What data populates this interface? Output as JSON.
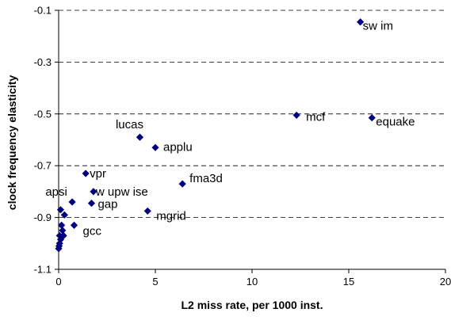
{
  "chart_data": {
    "type": "scatter",
    "title": "",
    "xlabel": "L2 miss rate, per 1000 inst.",
    "ylabel": "clock frequency elasticity",
    "xlim": [
      0,
      20
    ],
    "ylim": [
      -1.1,
      -0.1
    ],
    "xticks": [
      0,
      5,
      10,
      15,
      20
    ],
    "yticks": [
      -1.1,
      -0.9,
      -0.7,
      -0.5,
      -0.3,
      -0.1
    ],
    "xtick_labels": [
      "0",
      "5",
      "10",
      "15",
      "20"
    ],
    "ytick_labels": [
      "-1.1",
      "-0.9",
      "-0.7",
      "-0.5",
      "-0.3",
      "-0.1"
    ],
    "grid": "horizontal dashed",
    "legend": "none",
    "marker": "diamond",
    "marker_color": "#00007f",
    "points": [
      {
        "x": 15.6,
        "y": -0.145,
        "label": "sw im"
      },
      {
        "x": 12.3,
        "y": -0.505,
        "label": "mcf"
      },
      {
        "x": 16.2,
        "y": -0.515,
        "label": "equake"
      },
      {
        "x": 4.2,
        "y": -0.59,
        "label": "lucas"
      },
      {
        "x": 5.0,
        "y": -0.63,
        "label": "applu"
      },
      {
        "x": 6.4,
        "y": -0.77,
        "label": "fma3d"
      },
      {
        "x": 1.4,
        "y": -0.73,
        "label": "vpr"
      },
      {
        "x": 1.8,
        "y": -0.8,
        "label": "w upw ise"
      },
      {
        "x": 0.7,
        "y": -0.84,
        "label": "apsi"
      },
      {
        "x": 1.7,
        "y": -0.845,
        "label": "gap"
      },
      {
        "x": 4.6,
        "y": -0.875,
        "label": "mgrid"
      },
      {
        "x": 0.8,
        "y": -0.93,
        "label": "gcc"
      },
      {
        "x": 0.1,
        "y": -0.87,
        "label": ""
      },
      {
        "x": 0.3,
        "y": -0.89,
        "label": ""
      },
      {
        "x": 0.15,
        "y": -0.93,
        "label": ""
      },
      {
        "x": 0.2,
        "y": -0.95,
        "label": ""
      },
      {
        "x": 0.25,
        "y": -0.97,
        "label": ""
      },
      {
        "x": 0.05,
        "y": -0.97,
        "label": ""
      },
      {
        "x": 0.1,
        "y": -0.985,
        "label": ""
      },
      {
        "x": 0.05,
        "y": -1.0,
        "label": ""
      },
      {
        "x": 0.02,
        "y": -1.01,
        "label": ""
      },
      {
        "x": 0.0,
        "y": -1.02,
        "label": ""
      }
    ]
  }
}
